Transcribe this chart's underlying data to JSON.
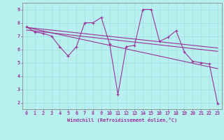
{
  "xlabel": "Windchill (Refroidissement éolien,°C)",
  "xlim": [
    -0.5,
    23.5
  ],
  "ylim": [
    1.5,
    9.5
  ],
  "xticks": [
    0,
    1,
    2,
    3,
    4,
    5,
    6,
    7,
    8,
    9,
    10,
    11,
    12,
    13,
    14,
    15,
    16,
    17,
    18,
    19,
    20,
    21,
    22,
    23
  ],
  "yticks": [
    2,
    3,
    4,
    5,
    6,
    7,
    8,
    9
  ],
  "bg_color": "#b8f0f0",
  "line_color": "#993399",
  "grid_color": "#a0dede",
  "series1_x": [
    0,
    1,
    2,
    3,
    4,
    5,
    6,
    7,
    8,
    9,
    10,
    11,
    12,
    13,
    14,
    15,
    16,
    17,
    18,
    19,
    20,
    21,
    22,
    23
  ],
  "series1_y": [
    7.7,
    7.3,
    7.2,
    7.0,
    6.2,
    5.5,
    6.2,
    8.0,
    8.0,
    8.4,
    6.4,
    2.6,
    6.2,
    6.3,
    9.0,
    9.0,
    6.6,
    6.9,
    7.4,
    5.8,
    5.1,
    5.0,
    4.9,
    1.9
  ],
  "trend1_x": [
    0,
    23
  ],
  "trend1_y": [
    7.65,
    6.1
  ],
  "trend2_x": [
    0,
    23
  ],
  "trend2_y": [
    7.45,
    5.85
  ],
  "trend3_x": [
    0,
    23
  ],
  "trend3_y": [
    7.65,
    4.55
  ],
  "spine_color": "#888888"
}
